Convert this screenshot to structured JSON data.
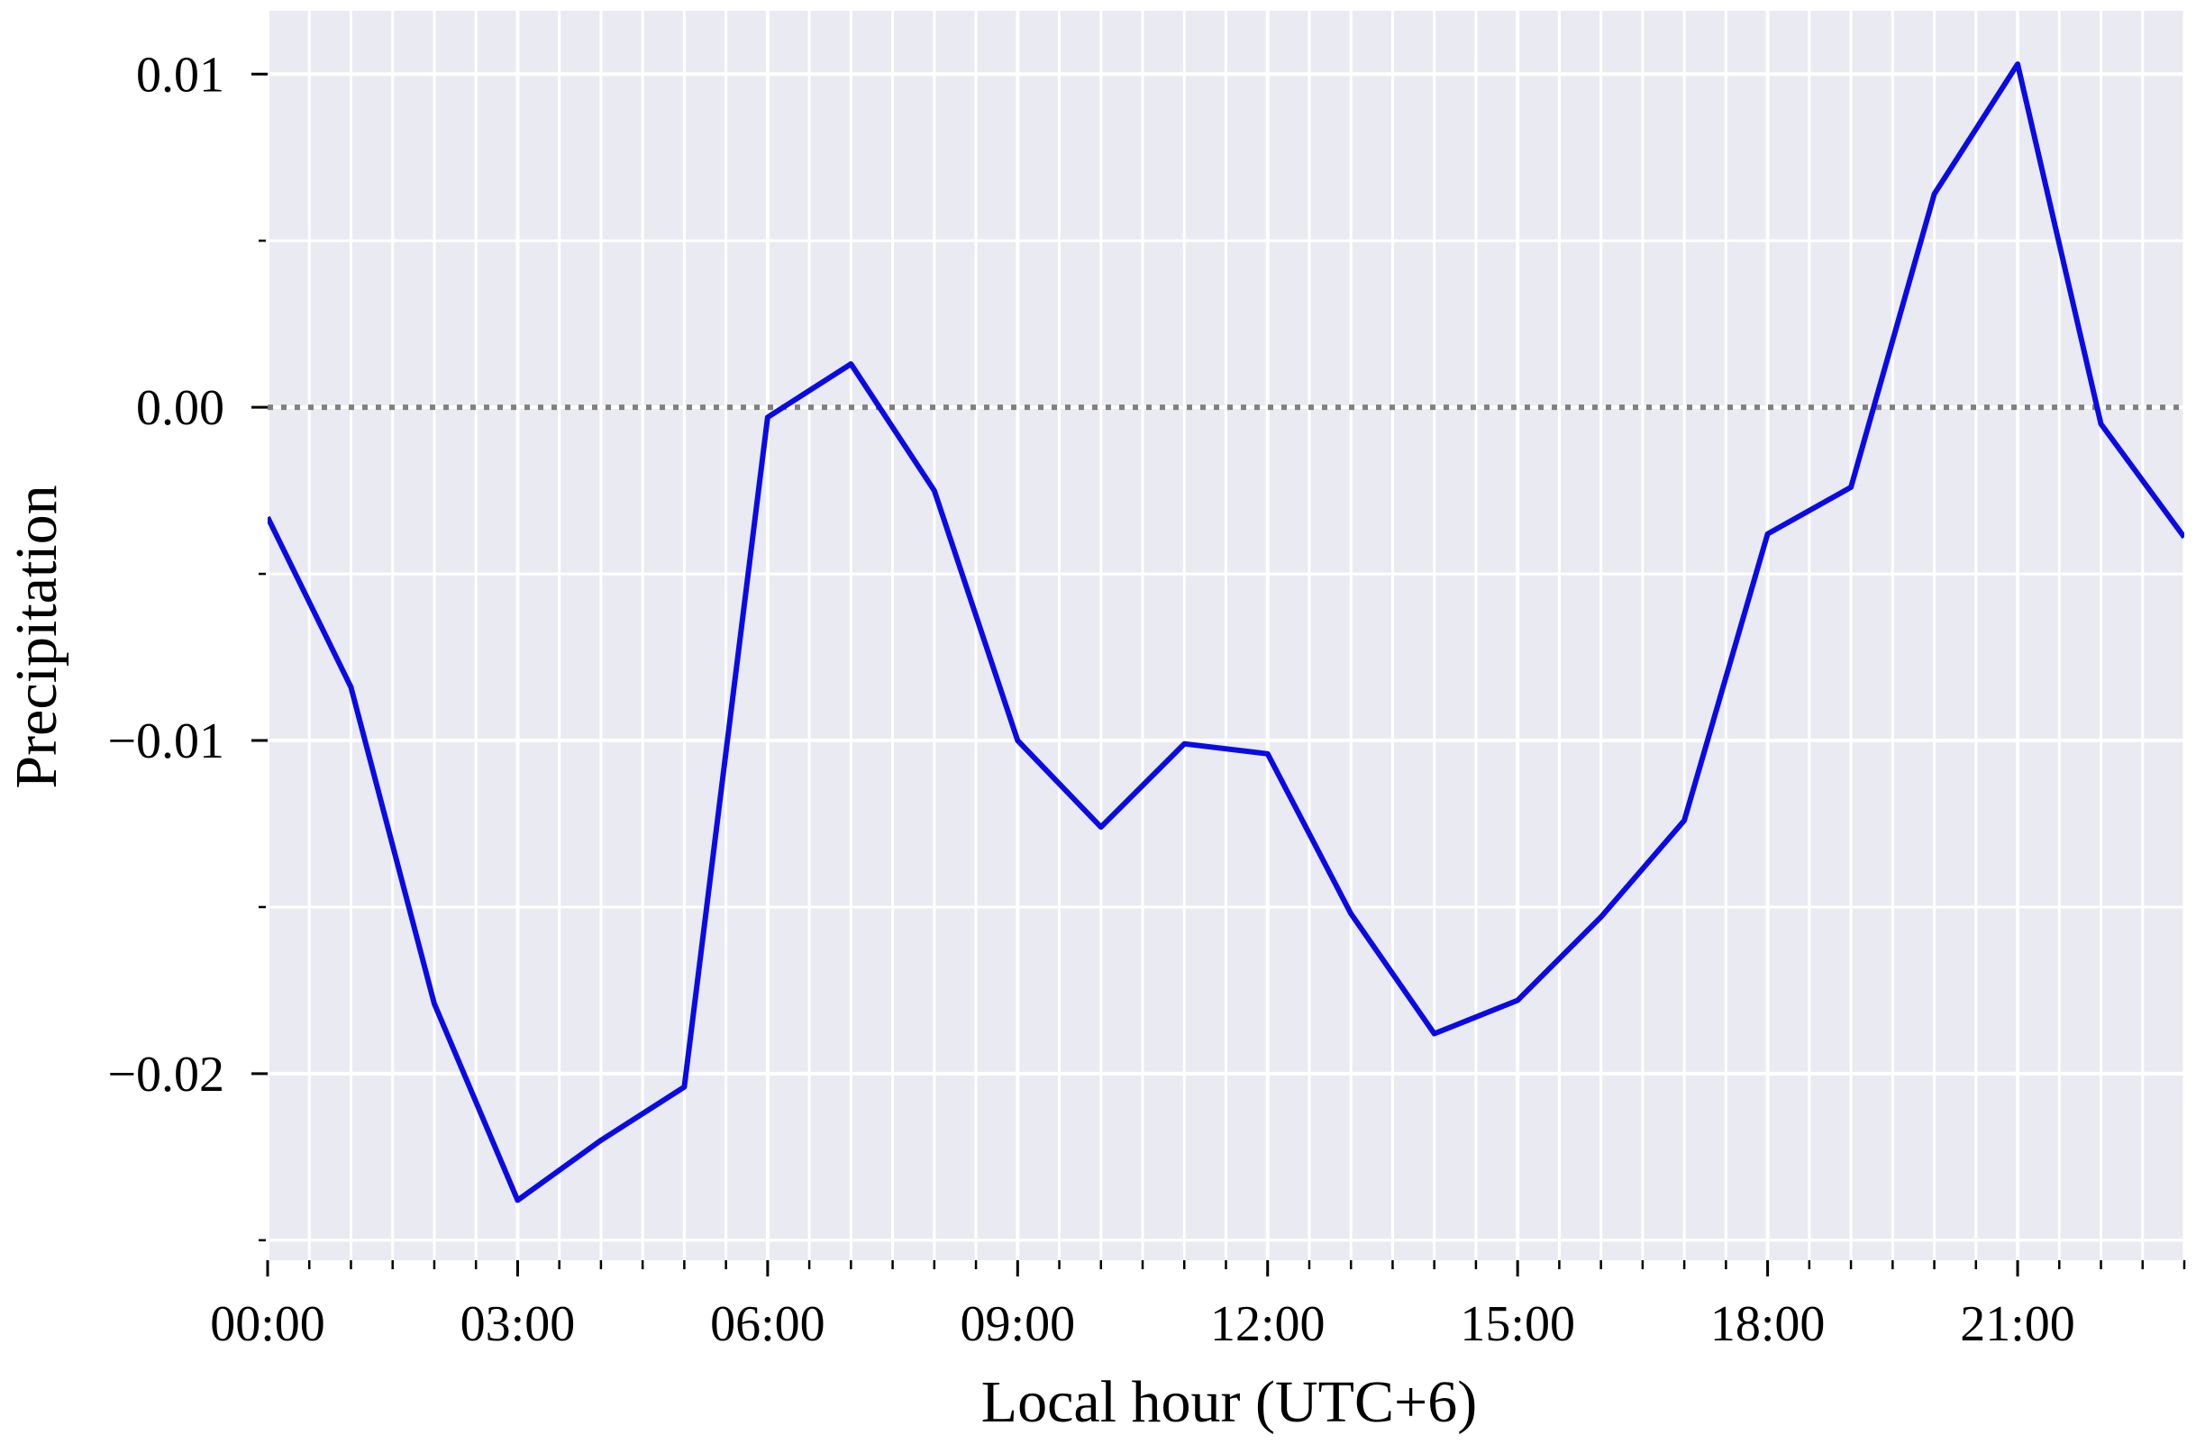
{
  "chart_data": {
    "type": "line",
    "x_label": "Local hour (UTC+6)",
    "y_label": "Precipitation",
    "x": [
      0,
      1,
      2,
      3,
      4,
      5,
      6,
      7,
      8,
      9,
      10,
      11,
      12,
      13,
      14,
      15,
      16,
      17,
      18,
      19,
      20,
      21,
      22,
      23
    ],
    "series": [
      {
        "color": "#0a0ae6",
        "values": [
          -0.0033,
          -0.0084,
          -0.0179,
          -0.0238,
          -0.022,
          -0.0204,
          -0.0003,
          0.0013,
          -0.0025,
          -0.01,
          -0.0126,
          -0.0101,
          -0.0104,
          -0.0152,
          -0.0188,
          -0.0178,
          -0.0153,
          -0.0124,
          -0.0038,
          -0.0024,
          0.0064,
          0.0103,
          -0.0005,
          -0.0039
        ]
      }
    ],
    "xlim": [
      0,
      23
    ],
    "ylim": [
      -0.0256,
      0.0119
    ],
    "xticks": [
      {
        "value": 0,
        "label": "00:00"
      },
      {
        "value": 3,
        "label": "03:00"
      },
      {
        "value": 6,
        "label": "06:00"
      },
      {
        "value": 9,
        "label": "09:00"
      },
      {
        "value": 12,
        "label": "12:00"
      },
      {
        "value": 15,
        "label": "15:00"
      },
      {
        "value": 18,
        "label": "18:00"
      },
      {
        "value": 21,
        "label": "21:00"
      }
    ],
    "yticks": [
      {
        "value": -0.02,
        "label": "−0.02"
      },
      {
        "value": -0.01,
        "label": "−0.01"
      },
      {
        "value": 0,
        "label": "0.00"
      },
      0.01
    ],
    "x_minor_step": 0.5,
    "y_minor_step": 0.005,
    "grid": true,
    "hline": {
      "value": 0,
      "color": "#808080",
      "style": "dotted"
    }
  }
}
